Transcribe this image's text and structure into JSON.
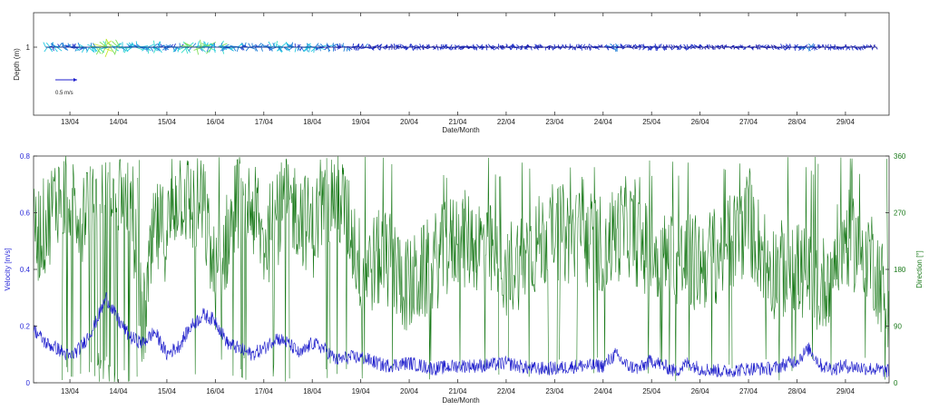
{
  "chart_data": [
    {
      "type": "quiver",
      "title": "",
      "xlabel": "Date/Month",
      "ylabel": "Depth (m)",
      "x_ticks": [
        "13/04",
        "14/04",
        "15/04",
        "16/04",
        "17/04",
        "18/04",
        "19/04",
        "20/04",
        "21/04",
        "22/04",
        "23/04",
        "24/04",
        "25/04",
        "26/04",
        "27/04",
        "28/04",
        "29/04"
      ],
      "y_ticks": [
        "1"
      ],
      "reference_vector_label": "0.5 m/s",
      "x_start_day": 12.25,
      "x_end_day": 29.9,
      "data_start_day": 12.5,
      "data_end_day": 29.65,
      "depth": 1
    },
    {
      "type": "line",
      "title": "",
      "xlabel": "Date/Month",
      "ylabel": "Velocity [m/s]",
      "y2label": "Direction [°]",
      "x_ticks": [
        "13/04",
        "14/04",
        "15/04",
        "16/04",
        "17/04",
        "18/04",
        "19/04",
        "20/04",
        "21/04",
        "22/04",
        "23/04",
        "24/04",
        "25/04",
        "26/04",
        "27/04",
        "28/04",
        "29/04"
      ],
      "y_ticks": [
        "0",
        "0.2",
        "0.4",
        "0.6",
        "0.8"
      ],
      "y2_ticks": [
        "0",
        "90",
        "180",
        "270",
        "360"
      ],
      "ylim": [
        0,
        0.8
      ],
      "y2lim": [
        0,
        360
      ],
      "series": [
        {
          "name": "Velocity",
          "axis": "left",
          "color": "#1f1fcc",
          "x_days": [
            12.25,
            12.5,
            12.75,
            13.0,
            13.25,
            13.5,
            13.75,
            14.0,
            14.25,
            14.5,
            14.75,
            15.0,
            15.25,
            15.5,
            15.75,
            16.0,
            16.25,
            16.5,
            16.75,
            17.0,
            17.25,
            17.5,
            17.75,
            18.0,
            18.25,
            18.5,
            18.75,
            19.0,
            19.5,
            20.0,
            20.5,
            21.0,
            21.5,
            22.0,
            22.5,
            23.0,
            23.5,
            24.0,
            24.25,
            24.5,
            24.75,
            25.0,
            25.25,
            25.5,
            25.75,
            26.0,
            26.5,
            27.0,
            27.5,
            28.0,
            28.25,
            28.5,
            28.75,
            29.0,
            29.5,
            29.9
          ],
          "values": [
            0.19,
            0.14,
            0.12,
            0.09,
            0.13,
            0.2,
            0.3,
            0.22,
            0.16,
            0.14,
            0.18,
            0.1,
            0.13,
            0.2,
            0.24,
            0.22,
            0.14,
            0.12,
            0.1,
            0.12,
            0.16,
            0.14,
            0.1,
            0.14,
            0.12,
            0.08,
            0.09,
            0.09,
            0.06,
            0.07,
            0.05,
            0.06,
            0.06,
            0.07,
            0.05,
            0.05,
            0.06,
            0.06,
            0.1,
            0.06,
            0.05,
            0.08,
            0.06,
            0.04,
            0.07,
            0.05,
            0.04,
            0.05,
            0.05,
            0.08,
            0.12,
            0.06,
            0.05,
            0.06,
            0.05,
            0.04
          ]
        },
        {
          "name": "Direction",
          "axis": "right",
          "color": "#1a7a1a",
          "x_days": [
            12.25,
            12.5,
            12.75,
            13.0,
            13.25,
            13.5,
            13.75,
            14.0,
            14.25,
            14.5,
            14.75,
            15.0,
            15.25,
            15.5,
            15.75,
            16.0,
            16.25,
            16.5,
            16.75,
            17.0,
            17.25,
            17.5,
            17.75,
            18.0,
            18.25,
            18.5,
            18.75,
            19.0,
            19.5,
            20.0,
            20.5,
            21.0,
            21.5,
            22.0,
            22.5,
            23.0,
            23.5,
            24.0,
            24.5,
            25.0,
            25.5,
            26.0,
            26.5,
            27.0,
            27.5,
            28.0,
            28.5,
            29.0,
            29.5,
            29.9
          ],
          "values": [
            230,
            250,
            300,
            300,
            270,
            330,
            330,
            310,
            300,
            80,
            240,
            240,
            310,
            280,
            280,
            160,
            230,
            300,
            280,
            220,
            260,
            290,
            270,
            240,
            290,
            300,
            260,
            180,
            200,
            150,
            190,
            230,
            220,
            180,
            210,
            240,
            230,
            220,
            250,
            200,
            190,
            190,
            210,
            250,
            180,
            180,
            150,
            230,
            210,
            120
          ]
        }
      ]
    }
  ]
}
